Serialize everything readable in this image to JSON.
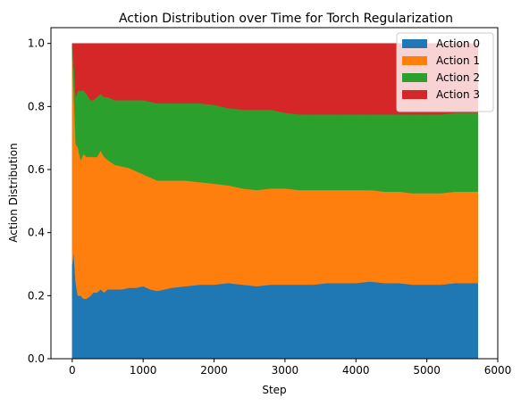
{
  "chart_data": {
    "type": "area",
    "stacked": true,
    "title": "Action Distribution over Time for Torch Regularization",
    "xlabel": "Step",
    "ylabel": "Action Distribution",
    "xlim": [
      -300,
      6000
    ],
    "ylim": [
      0.0,
      1.05
    ],
    "xticks": [
      0,
      1000,
      2000,
      3000,
      4000,
      5000,
      6000
    ],
    "yticks": [
      0.0,
      0.2,
      0.4,
      0.6,
      0.8,
      1.0
    ],
    "xtick_labels": [
      "0",
      "1000",
      "2000",
      "3000",
      "4000",
      "5000",
      "6000"
    ],
    "ytick_labels": [
      "0.0",
      "0.2",
      "0.4",
      "0.6",
      "0.8",
      "1.0"
    ],
    "legend_position": "top-right",
    "grid": false,
    "x": [
      0,
      20,
      50,
      80,
      120,
      160,
      200,
      260,
      300,
      350,
      400,
      450,
      500,
      600,
      700,
      800,
      900,
      1000,
      1100,
      1200,
      1400,
      1600,
      1800,
      2000,
      2200,
      2400,
      2600,
      2800,
      3000,
      3200,
      3400,
      3600,
      3800,
      4000,
      4200,
      4400,
      4600,
      4800,
      5000,
      5200,
      5400,
      5600,
      5720
    ],
    "series": [
      {
        "name": "Action 0",
        "color": "#1f77b4",
        "values": [
          0.3,
          0.34,
          0.24,
          0.2,
          0.2,
          0.19,
          0.19,
          0.2,
          0.21,
          0.21,
          0.22,
          0.21,
          0.22,
          0.22,
          0.22,
          0.225,
          0.225,
          0.23,
          0.22,
          0.215,
          0.225,
          0.23,
          0.235,
          0.235,
          0.24,
          0.235,
          0.23,
          0.235,
          0.235,
          0.235,
          0.235,
          0.24,
          0.24,
          0.24,
          0.245,
          0.24,
          0.24,
          0.235,
          0.235,
          0.235,
          0.24,
          0.24,
          0.24
        ]
      },
      {
        "name": "Action 1",
        "color": "#ff7f0e",
        "values": [
          0.66,
          0.52,
          0.44,
          0.47,
          0.43,
          0.46,
          0.45,
          0.44,
          0.43,
          0.43,
          0.44,
          0.43,
          0.41,
          0.395,
          0.39,
          0.38,
          0.37,
          0.355,
          0.355,
          0.35,
          0.34,
          0.335,
          0.325,
          0.32,
          0.31,
          0.305,
          0.305,
          0.305,
          0.305,
          0.3,
          0.3,
          0.295,
          0.295,
          0.295,
          0.29,
          0.29,
          0.29,
          0.29,
          0.29,
          0.29,
          0.29,
          0.29,
          0.29
        ]
      },
      {
        "name": "Action 2",
        "color": "#2ca02c",
        "values": [
          0.03,
          0.09,
          0.15,
          0.18,
          0.22,
          0.2,
          0.2,
          0.18,
          0.18,
          0.19,
          0.18,
          0.19,
          0.2,
          0.205,
          0.21,
          0.215,
          0.225,
          0.235,
          0.24,
          0.245,
          0.245,
          0.245,
          0.25,
          0.25,
          0.245,
          0.25,
          0.255,
          0.25,
          0.24,
          0.24,
          0.24,
          0.24,
          0.24,
          0.24,
          0.24,
          0.245,
          0.245,
          0.25,
          0.25,
          0.25,
          0.25,
          0.25,
          0.25
        ]
      },
      {
        "name": "Action 3",
        "color": "#d62728",
        "values": [
          0.01,
          0.05,
          0.17,
          0.15,
          0.15,
          0.15,
          0.16,
          0.18,
          0.18,
          0.17,
          0.16,
          0.17,
          0.17,
          0.18,
          0.18,
          0.18,
          0.18,
          0.18,
          0.185,
          0.19,
          0.19,
          0.19,
          0.19,
          0.195,
          0.205,
          0.21,
          0.21,
          0.21,
          0.22,
          0.225,
          0.225,
          0.225,
          0.225,
          0.225,
          0.225,
          0.225,
          0.225,
          0.225,
          0.225,
          0.225,
          0.22,
          0.22,
          0.22
        ]
      }
    ]
  }
}
